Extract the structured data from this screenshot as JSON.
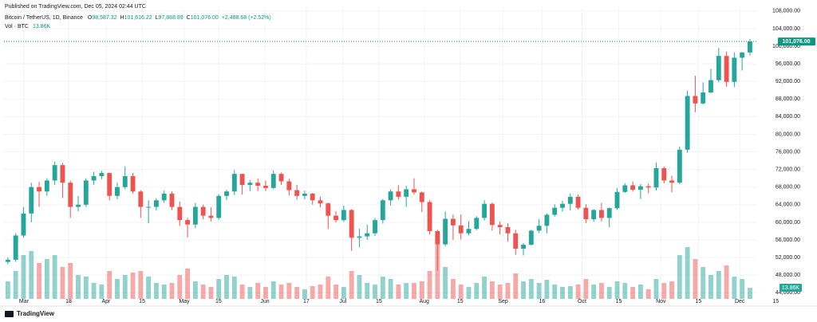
{
  "header": {
    "published": "Published on TradingView.com, Dec 05, 2024 02:44 UTC",
    "brand": "TradingView"
  },
  "chart_data": {
    "type": "candlestick",
    "title": "Bitcoin / TetherUS, 1D, Binance",
    "ohlc_legend": [
      {
        "key": "O",
        "label": "98,587.32"
      },
      {
        "key": "H",
        "label": "101,616.22"
      },
      {
        "key": "L",
        "label": "97,888.89"
      },
      {
        "key": "C",
        "label": "101,076.00"
      }
    ],
    "change": "+2,488.68 (+2.52%)",
    "up_color": "#26a69a",
    "down_color": "#ef5350",
    "open": [
      51000,
      51500,
      57000,
      62000,
      68000,
      67000,
      69500,
      73000,
      69000,
      63500,
      64000,
      69500,
      70500,
      71200,
      66000,
      68000,
      70500,
      67000,
      63500,
      63500,
      65000,
      66500,
      63500,
      60500,
      59500,
      63500,
      61500,
      61000,
      66000,
      67000,
      71000,
      68500,
      69000,
      68300,
      67800,
      71000,
      69300,
      67300,
      66000,
      66500,
      65000,
      64300,
      61500,
      60500,
      62800,
      56500,
      56800,
      57500,
      60500,
      65000,
      67000,
      65800,
      67500,
      66800,
      64600,
      58000,
      55000,
      60800,
      59300,
      57500,
      58500,
      61000,
      64200,
      59400,
      58900,
      57500,
      54000,
      54900,
      58100,
      59200,
      61700,
      63300,
      64200,
      65800,
      63300,
      60700,
      62800,
      61000,
      63200,
      66900,
      68400,
      67400,
      68200,
      67900,
      72300,
      69500,
      69000,
      76500,
      88700,
      87000,
      89500,
      92300,
      97800,
      91900,
      97400,
      98587
    ],
    "high": [
      52000,
      57500,
      63500,
      69000,
      69200,
      70000,
      73800,
      73500,
      69500,
      66000,
      70000,
      71500,
      71700,
      71300,
      69000,
      72700,
      71200,
      67300,
      65000,
      65500,
      67200,
      67000,
      64700,
      61000,
      64400,
      64000,
      63400,
      66400,
      67400,
      71900,
      70800,
      69600,
      70000,
      69500,
      71800,
      71300,
      69900,
      68500,
      67200,
      66700,
      65800,
      64500,
      62500,
      63800,
      63000,
      58500,
      59500,
      61000,
      65300,
      67500,
      68400,
      68300,
      70000,
      67000,
      65000,
      58300,
      62500,
      61800,
      61800,
      60300,
      61400,
      65000,
      64500,
      60200,
      59800,
      58300,
      55300,
      58300,
      60700,
      62000,
      64100,
      64900,
      66500,
      66300,
      64100,
      63000,
      64400,
      63400,
      67800,
      68900,
      69300,
      68700,
      68800,
      73600,
      72700,
      70600,
      77200,
      89900,
      93300,
      91800,
      94900,
      99600,
      98800,
      98600,
      98700,
      101616.22
    ],
    "low": [
      50500,
      51000,
      56500,
      60000,
      63500,
      66000,
      68500,
      65500,
      61000,
      62500,
      63500,
      68500,
      69800,
      65000,
      65200,
      67500,
      66500,
      61000,
      59800,
      62700,
      64400,
      62800,
      59200,
      56500,
      58700,
      60700,
      60200,
      60600,
      65000,
      66200,
      66300,
      67100,
      67100,
      67100,
      67500,
      68500,
      66100,
      65100,
      65200,
      64000,
      63400,
      58500,
      60000,
      60100,
      53500,
      54300,
      56000,
      56900,
      59700,
      63800,
      65100,
      63500,
      66300,
      62300,
      57200,
      49000,
      54600,
      56000,
      56100,
      57000,
      58200,
      60400,
      58100,
      57200,
      55600,
      52600,
      52500,
      54700,
      57600,
      57500,
      61300,
      62400,
      62700,
      62900,
      59800,
      60100,
      60200,
      58900,
      62900,
      66700,
      67000,
      65300,
      66600,
      67200,
      68800,
      66800,
      68700,
      75800,
      85000,
      86800,
      89300,
      91800,
      90800,
      90700,
      94500,
      97888.89
    ],
    "close": [
      51500,
      57000,
      62000,
      68000,
      67000,
      69500,
      73000,
      69000,
      63500,
      64000,
      69500,
      70500,
      71200,
      66000,
      68000,
      70500,
      67000,
      63500,
      63500,
      65000,
      66500,
      63500,
      60500,
      59500,
      63500,
      61500,
      61000,
      66000,
      67000,
      71000,
      68500,
      69000,
      68300,
      67800,
      71000,
      69300,
      67300,
      66000,
      66500,
      65000,
      64300,
      61500,
      60500,
      62800,
      56500,
      56800,
      57500,
      60500,
      65000,
      67000,
      65800,
      67500,
      66800,
      64600,
      58000,
      55000,
      60800,
      59300,
      57500,
      58500,
      61000,
      64200,
      59400,
      58900,
      57500,
      54000,
      54900,
      58100,
      59200,
      61700,
      63300,
      64200,
      65800,
      63300,
      60700,
      62800,
      61000,
      63200,
      66900,
      68400,
      67400,
      68200,
      67900,
      72300,
      69500,
      69000,
      76500,
      88700,
      87000,
      89500,
      92300,
      97800,
      91900,
      97400,
      98587,
      101076
    ],
    "volume": {
      "name": "Vol · BTC",
      "last_label": "13.86K",
      "lim": [
        0,
        80
      ],
      "values": [
        22,
        35,
        55,
        60,
        45,
        50,
        55,
        40,
        45,
        30,
        28,
        20,
        18,
        35,
        25,
        30,
        33,
        35,
        28,
        20,
        18,
        20,
        30,
        38,
        22,
        18,
        15,
        25,
        30,
        28,
        18,
        15,
        20,
        15,
        22,
        18,
        20,
        15,
        12,
        16,
        18,
        28,
        18,
        15,
        35,
        30,
        20,
        18,
        28,
        25,
        18,
        20,
        20,
        22,
        35,
        75,
        40,
        25,
        18,
        15,
        20,
        28,
        22,
        18,
        20,
        32,
        22,
        25,
        20,
        24,
        18,
        15,
        16,
        18,
        25,
        18,
        20,
        15,
        22,
        20,
        15,
        18,
        12,
        25,
        20,
        22,
        55,
        65,
        50,
        40,
        30,
        35,
        42,
        28,
        25,
        13.86
      ]
    },
    "last_price": {
      "value": 101076,
      "label": "101,076.00"
    },
    "xlim": [
      0,
      100
    ],
    "xticks": [
      {
        "value": 2.55,
        "label": "Mar"
      },
      {
        "value": 8.27,
        "label": "18"
      },
      {
        "value": 13.07,
        "label": "Apr"
      },
      {
        "value": 17.67,
        "label": "15"
      },
      {
        "value": 23.08,
        "label": "May"
      },
      {
        "value": 27.47,
        "label": "15"
      },
      {
        "value": 33.4,
        "label": "Jun"
      },
      {
        "value": 38.7,
        "label": "17"
      },
      {
        "value": 43.4,
        "label": "Jul"
      },
      {
        "value": 48.0,
        "label": "15"
      },
      {
        "value": 53.8,
        "label": "Aug"
      },
      {
        "value": 58.4,
        "label": "15"
      },
      {
        "value": 63.9,
        "label": "Sep"
      },
      {
        "value": 68.9,
        "label": "16"
      },
      {
        "value": 74.0,
        "label": "Oct"
      },
      {
        "value": 78.7,
        "label": "15"
      },
      {
        "value": 84.1,
        "label": "Nov"
      },
      {
        "value": 88.9,
        "label": "15"
      },
      {
        "value": 94.2,
        "label": "Dec"
      },
      {
        "value": 98.8,
        "label": "15"
      }
    ],
    "ylim": [
      42600,
      108700
    ],
    "yticks": [
      {
        "value": 44000,
        "label": "44,000.00"
      },
      {
        "value": 48000,
        "label": "48,000.00"
      },
      {
        "value": 52000,
        "label": "52,000.00"
      },
      {
        "value": 56000,
        "label": "56,000.00"
      },
      {
        "value": 60000,
        "label": "60,000.00"
      },
      {
        "value": 64000,
        "label": "64,000.00"
      },
      {
        "value": 68000,
        "label": "68,000.00"
      },
      {
        "value": 72000,
        "label": "72,000.00"
      },
      {
        "value": 76000,
        "label": "76,000.00"
      },
      {
        "value": 80000,
        "label": "80,000.00"
      },
      {
        "value": 84000,
        "label": "84,000.00"
      },
      {
        "value": 88000,
        "label": "88,000.00"
      },
      {
        "value": 92000,
        "label": "92,000.00"
      },
      {
        "value": 96000,
        "label": "96,000.00"
      },
      {
        "value": 100000,
        "label": "100,000.00"
      },
      {
        "value": 104000,
        "label": "104,000.00"
      },
      {
        "value": 108000,
        "label": "108,000.00"
      }
    ],
    "grid": true
  }
}
